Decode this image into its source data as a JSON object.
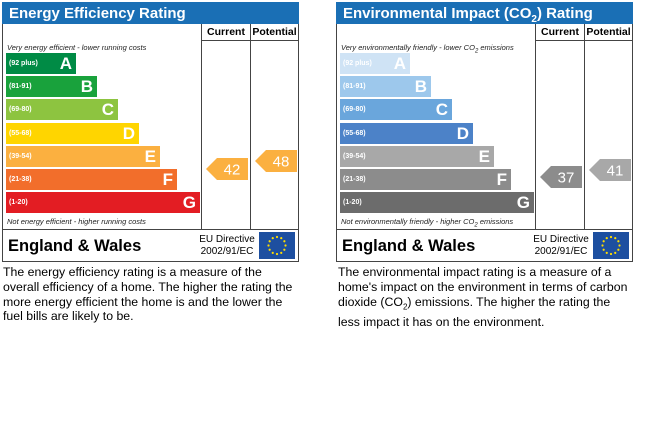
{
  "charts": [
    {
      "id": "ee",
      "title": "Energy Efficiency Rating",
      "header_color": "#1a6fb5",
      "col_current": "Current",
      "col_potential": "Potential",
      "top_caption": "Very energy efficient - lower running costs",
      "bottom_caption": "Not energy efficient - higher running costs",
      "bands": [
        {
          "range": "(92 plus)",
          "letter": "A",
          "color": "#008b45"
        },
        {
          "range": "(81-91)",
          "letter": "B",
          "color": "#19a23c"
        },
        {
          "range": "(69-80)",
          "letter": "C",
          "color": "#8dc440"
        },
        {
          "range": "(55-68)",
          "letter": "D",
          "color": "#ffd500"
        },
        {
          "range": "(39-54)",
          "letter": "E",
          "color": "#fbb040"
        },
        {
          "range": "(21-38)",
          "letter": "F",
          "color": "#f26e2b"
        },
        {
          "range": "(1-20)",
          "letter": "G",
          "color": "#e31d23"
        }
      ],
      "current": {
        "value": "42",
        "color": "#fbb040"
      },
      "potential": {
        "value": "48",
        "color": "#fbb040"
      },
      "country": "England & Wales",
      "directive_line1": "EU Directive",
      "directive_line2": "2002/91/EC",
      "description": "The energy efficiency rating is a measure of the overall efficiency of a home. The higher the rating the more energy efficient the home is and the lower the fuel bills are likely to be."
    },
    {
      "id": "ei",
      "title": "Environmental Impact (CO",
      "title_sub": "2",
      "title_end": ") Rating",
      "header_color": "#1a6fb5",
      "col_current": "Current",
      "col_potential": "Potential",
      "top_caption": "Very environmentally friendly - lower CO",
      "top_caption_sub": "2",
      "top_caption_end": " emissions",
      "bottom_caption": "Not environmentally friendly - higher CO",
      "bottom_caption_sub": "2",
      "bottom_caption_end": " emissions",
      "bands": [
        {
          "range": "(92 plus)",
          "letter": "A",
          "color": "#cfe3f5"
        },
        {
          "range": "(81-91)",
          "letter": "B",
          "color": "#9dc8ec"
        },
        {
          "range": "(69-80)",
          "letter": "C",
          "color": "#6aa6dc"
        },
        {
          "range": "(55-68)",
          "letter": "D",
          "color": "#4c82c8"
        },
        {
          "range": "(39-54)",
          "letter": "E",
          "color": "#a8a8a8"
        },
        {
          "range": "(21-38)",
          "letter": "F",
          "color": "#8c8c8c"
        },
        {
          "range": "(1-20)",
          "letter": "G",
          "color": "#6c6c6c"
        }
      ],
      "current": {
        "value": "37",
        "color": "#8c8c8c"
      },
      "potential": {
        "value": "41",
        "color": "#a8a8a8"
      },
      "country": "England & Wales",
      "directive_line1": "EU Directive",
      "directive_line2": "2002/91/EC",
      "description_part1": "The environmental impact rating is a measure of a home's impact on the environment in terms of carbon dioxide (CO",
      "description_sub": "2",
      "description_part2": ") emissions. The higher the rating the less impact it has on the environment."
    }
  ],
  "chart_data": [
    {
      "type": "bar",
      "title": "Energy Efficiency Rating",
      "categories": [
        "A",
        "B",
        "C",
        "D",
        "E",
        "F",
        "G"
      ],
      "ranges": [
        "92 plus",
        "81-91",
        "69-80",
        "55-68",
        "39-54",
        "21-38",
        "1-20"
      ],
      "current": 42,
      "potential": 48
    },
    {
      "type": "bar",
      "title": "Environmental Impact (CO2) Rating",
      "categories": [
        "A",
        "B",
        "C",
        "D",
        "E",
        "F",
        "G"
      ],
      "ranges": [
        "92 plus",
        "81-91",
        "69-80",
        "55-68",
        "39-54",
        "21-38",
        "1-20"
      ],
      "current": 37,
      "potential": 41
    }
  ]
}
